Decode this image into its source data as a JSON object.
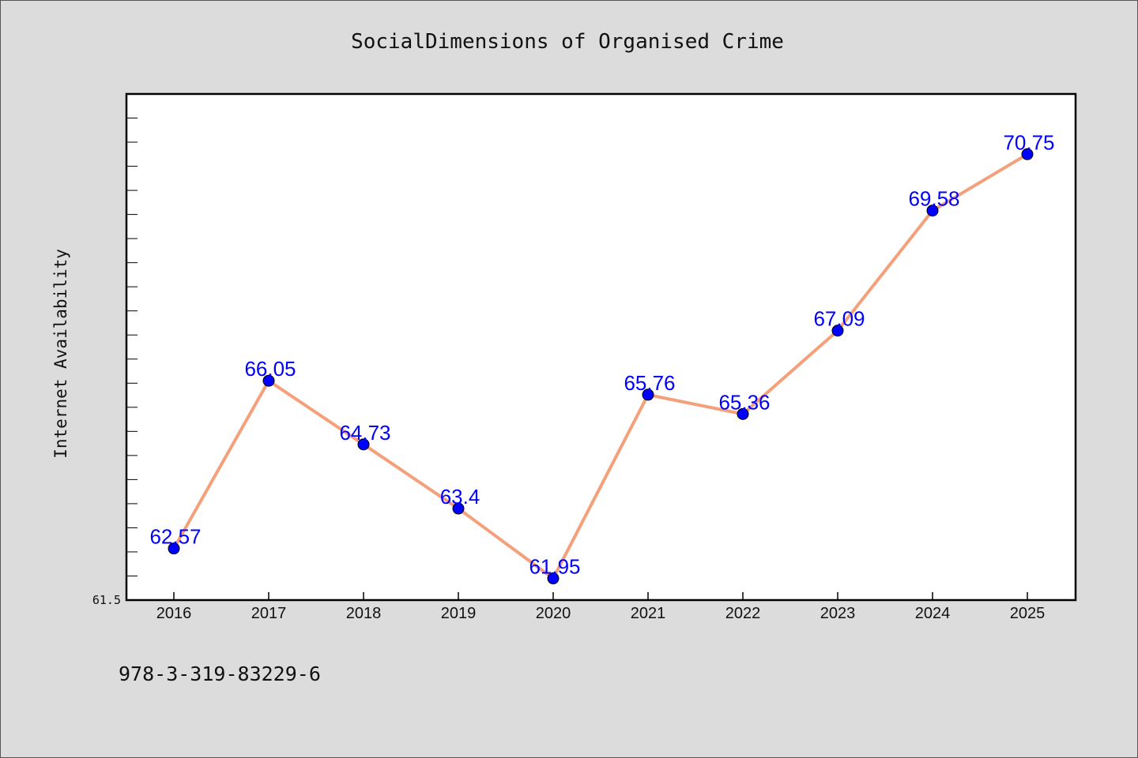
{
  "chart_data": {
    "type": "line",
    "title": "SocialDimensions of Organised Crime",
    "xlabel": "",
    "ylabel": "Internet Availability",
    "categories": [
      "2016",
      "2017",
      "2018",
      "2019",
      "2020",
      "2021",
      "2022",
      "2023",
      "2024",
      "2025"
    ],
    "series": [
      {
        "values": [
          62.57,
          66.05,
          64.73,
          63.4,
          61.95,
          65.76,
          65.36,
          67.09,
          69.58,
          70.75
        ]
      }
    ],
    "data_labels": [
      "62.57",
      "66.05",
      "64.73",
      "63.4",
      "61.95",
      "65.76",
      "65.36",
      "67.09",
      "69.58",
      "70.75"
    ],
    "ylim": [
      61.5,
      72.0
    ],
    "y_tick_labels": [
      "61.5"
    ],
    "grid": false,
    "line_color": "#f4a07a",
    "marker_color": "#0000ff",
    "label_color": "#0000ff",
    "plot_background": "#ffffff",
    "figure_background": "#dcdcdc"
  },
  "footer": {
    "isbn": "978-3-319-83229-6"
  }
}
